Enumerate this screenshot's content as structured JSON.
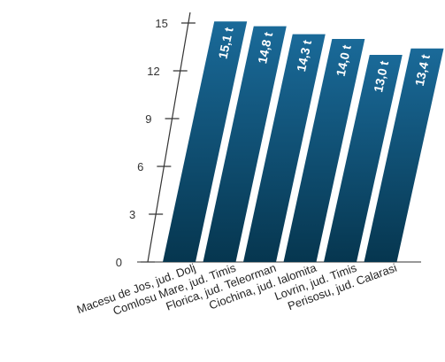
{
  "chart_data": {
    "type": "bar",
    "categories": [
      "Macesu de Jos, jud. Dolj",
      "Comlosu Mare, jud. Timis",
      "Florica, jud. Teleorman",
      "Ciochina, jud. Ialomita",
      "Lovrin, jud. Timis",
      "Perisosu, jud. Calarasi"
    ],
    "values": [
      15.1,
      14.8,
      14.3,
      14.0,
      13.0,
      13.4
    ],
    "data_labels": [
      "15,1 t",
      "14,8 t",
      "14,3 t",
      "14,0 t",
      "13,0 t",
      "13,4 t"
    ],
    "yticks": [
      0,
      3,
      6,
      9,
      12,
      15
    ],
    "ytick_labels": [
      "0",
      "3",
      "6",
      "9",
      "12",
      "15"
    ],
    "ylim": [
      0,
      15
    ],
    "title": "",
    "xlabel": "",
    "ylabel": "",
    "grid": false,
    "bar_color_top": "#1a6a99",
    "bar_color_bottom": "#06364f"
  }
}
